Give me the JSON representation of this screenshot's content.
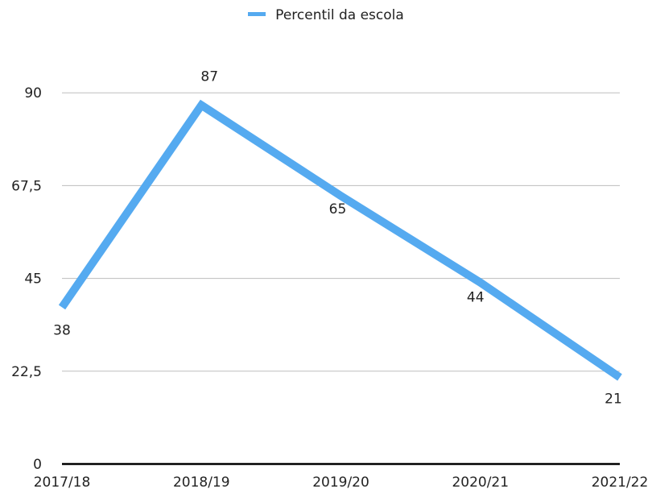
{
  "chart_data": {
    "type": "line",
    "categories": [
      "2017/18",
      "2018/19",
      "2019/20",
      "2020/21",
      "2021/22"
    ],
    "series": [
      {
        "name": "Percentil da escola",
        "values": [
          38,
          87,
          65,
          44,
          21
        ],
        "color": "#55aaf0"
      }
    ],
    "y_ticks": [
      "0",
      "22,5",
      "45",
      "67,5",
      "90"
    ],
    "ylim": [
      0,
      112.5
    ],
    "grid": true,
    "legend_position": "top",
    "data_labels": [
      "38",
      "87",
      "65",
      "44",
      "21"
    ]
  }
}
